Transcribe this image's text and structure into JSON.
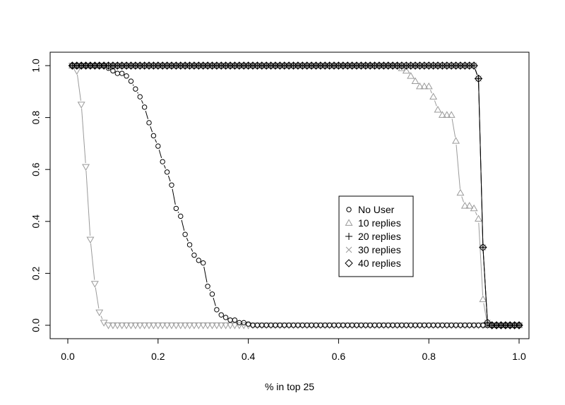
{
  "chart_data": {
    "type": "scatter",
    "title": "",
    "xlabel": "% in top 25",
    "ylabel": "",
    "xlim": [
      0.0,
      1.0
    ],
    "ylim": [
      0.0,
      1.0
    ],
    "xticks": [
      "0.0",
      "0.2",
      "0.4",
      "0.6",
      "0.8",
      "1.0"
    ],
    "yticks": [
      "0.0",
      "0.2",
      "0.4",
      "0.6",
      "0.8",
      "1.0"
    ],
    "grid": false,
    "legend_position": "center-right",
    "legend": [
      {
        "label": "No User",
        "marker": "circle",
        "color": "#000000"
      },
      {
        "label": "10 replies",
        "marker": "triangle-up",
        "color": "#9a9a9a"
      },
      {
        "label": "20 replies",
        "marker": "plus",
        "color": "#000000"
      },
      {
        "label": "30 replies",
        "marker": "cross",
        "color": "#9a9a9a"
      },
      {
        "label": "40 replies",
        "marker": "diamond",
        "color": "#000000"
      }
    ],
    "series": [
      {
        "name": "No User",
        "marker": "circle",
        "color": "#000000",
        "x": [
          0.01,
          0.02,
          0.03,
          0.04,
          0.05,
          0.06,
          0.07,
          0.08,
          0.09,
          0.1,
          0.11,
          0.12,
          0.13,
          0.14,
          0.15,
          0.16,
          0.17,
          0.18,
          0.19,
          0.2,
          0.21,
          0.22,
          0.23,
          0.24,
          0.25,
          0.26,
          0.27,
          0.28,
          0.29,
          0.3,
          0.31,
          0.32,
          0.33,
          0.34,
          0.35,
          0.36,
          0.37,
          0.38,
          0.39,
          0.4,
          0.41,
          0.42,
          0.43,
          0.44,
          0.45,
          0.46,
          0.47,
          0.48,
          0.49,
          0.5,
          0.51,
          0.52,
          0.53,
          0.54,
          0.55,
          0.56,
          0.57,
          0.58,
          0.59,
          0.6,
          0.61,
          0.62,
          0.63,
          0.64,
          0.65,
          0.66,
          0.67,
          0.68,
          0.69,
          0.7,
          0.71,
          0.72,
          0.73,
          0.74,
          0.75,
          0.76,
          0.77,
          0.78,
          0.79,
          0.8,
          0.81,
          0.82,
          0.83,
          0.84,
          0.85,
          0.86,
          0.87,
          0.88,
          0.89,
          0.9,
          0.91,
          0.92,
          0.93,
          0.94,
          0.95,
          0.96,
          0.97,
          0.98,
          0.99,
          1.0
        ],
        "y": [
          1,
          1,
          1,
          1,
          1,
          1,
          1,
          1,
          0.99,
          0.98,
          0.97,
          0.97,
          0.96,
          0.94,
          0.91,
          0.88,
          0.84,
          0.78,
          0.73,
          0.69,
          0.63,
          0.59,
          0.54,
          0.45,
          0.42,
          0.35,
          0.31,
          0.27,
          0.25,
          0.24,
          0.15,
          0.12,
          0.06,
          0.04,
          0.03,
          0.02,
          0.02,
          0.01,
          0.01,
          0.005,
          0,
          0,
          0,
          0,
          0,
          0,
          0,
          0,
          0,
          0,
          0,
          0,
          0,
          0,
          0,
          0,
          0,
          0,
          0,
          0,
          0,
          0,
          0,
          0,
          0,
          0,
          0,
          0,
          0,
          0,
          0,
          0,
          0,
          0,
          0,
          0,
          0,
          0,
          0,
          0,
          0,
          0,
          0,
          0,
          0,
          0,
          0,
          0,
          0,
          0,
          0,
          0,
          0,
          0,
          0,
          0,
          0,
          0,
          0,
          0
        ]
      },
      {
        "name": "10 replies",
        "marker": "triangle-up",
        "color": "#9a9a9a",
        "x": [
          0.01,
          0.02,
          0.03,
          0.04,
          0.05,
          0.06,
          0.07,
          0.08,
          0.09,
          0.1,
          0.11,
          0.12,
          0.13,
          0.14,
          0.15,
          0.16,
          0.17,
          0.18,
          0.19,
          0.2,
          0.21,
          0.22,
          0.23,
          0.24,
          0.25,
          0.26,
          0.27,
          0.28,
          0.29,
          0.3,
          0.31,
          0.32,
          0.33,
          0.34,
          0.35,
          0.36,
          0.37,
          0.38,
          0.39,
          0.4,
          0.41,
          0.42,
          0.43,
          0.44,
          0.45,
          0.46,
          0.47,
          0.48,
          0.49,
          0.5,
          0.51,
          0.52,
          0.53,
          0.54,
          0.55,
          0.56,
          0.57,
          0.58,
          0.59,
          0.6,
          0.61,
          0.62,
          0.63,
          0.64,
          0.65,
          0.66,
          0.67,
          0.68,
          0.69,
          0.7,
          0.71,
          0.72,
          0.73,
          0.74,
          0.75,
          0.76,
          0.77,
          0.78,
          0.79,
          0.8,
          0.81,
          0.82,
          0.83,
          0.84,
          0.85,
          0.86,
          0.87,
          0.88,
          0.89,
          0.9,
          0.91,
          0.92,
          0.93,
          0.94,
          0.95,
          0.96,
          0.97,
          0.98,
          0.99,
          1.0
        ],
        "y": [
          1,
          1,
          1,
          1,
          1,
          1,
          1,
          1,
          1,
          1,
          1,
          1,
          1,
          1,
          1,
          1,
          1,
          1,
          1,
          1,
          1,
          1,
          1,
          1,
          1,
          1,
          1,
          1,
          1,
          1,
          1,
          1,
          1,
          1,
          1,
          1,
          1,
          1,
          1,
          1,
          1,
          1,
          1,
          1,
          1,
          1,
          1,
          1,
          1,
          1,
          1,
          1,
          1,
          1,
          1,
          1,
          1,
          1,
          1,
          1,
          1,
          1,
          1,
          1,
          1,
          1,
          1,
          1,
          1,
          1,
          1,
          1,
          1,
          0.99,
          0.98,
          0.96,
          0.94,
          0.92,
          0.92,
          0.92,
          0.88,
          0.83,
          0.81,
          0.81,
          0.81,
          0.71,
          0.51,
          0.46,
          0.46,
          0.45,
          0.41,
          0.1,
          0,
          0,
          0,
          0,
          0,
          0,
          0,
          0
        ]
      },
      {
        "name": "20 replies",
        "marker": "plus",
        "color": "#000000",
        "x": [
          0.01,
          0.02,
          0.03,
          0.04,
          0.05,
          0.06,
          0.07,
          0.08,
          0.09,
          0.1,
          0.11,
          0.12,
          0.13,
          0.14,
          0.15,
          0.16,
          0.17,
          0.18,
          0.19,
          0.2,
          0.21,
          0.22,
          0.23,
          0.24,
          0.25,
          0.26,
          0.27,
          0.28,
          0.29,
          0.3,
          0.31,
          0.32,
          0.33,
          0.34,
          0.35,
          0.36,
          0.37,
          0.38,
          0.39,
          0.4,
          0.41,
          0.42,
          0.43,
          0.44,
          0.45,
          0.46,
          0.47,
          0.48,
          0.49,
          0.5,
          0.51,
          0.52,
          0.53,
          0.54,
          0.55,
          0.56,
          0.57,
          0.58,
          0.59,
          0.6,
          0.61,
          0.62,
          0.63,
          0.64,
          0.65,
          0.66,
          0.67,
          0.68,
          0.69,
          0.7,
          0.71,
          0.72,
          0.73,
          0.74,
          0.75,
          0.76,
          0.77,
          0.78,
          0.79,
          0.8,
          0.81,
          0.82,
          0.83,
          0.84,
          0.85,
          0.86,
          0.87,
          0.88,
          0.89,
          0.9,
          0.91,
          0.92,
          0.93,
          0.94,
          0.95,
          0.96,
          0.97,
          0.98,
          0.99,
          1.0
        ],
        "y": [
          1,
          1,
          1,
          1,
          1,
          1,
          1,
          1,
          1,
          1,
          1,
          1,
          1,
          1,
          1,
          1,
          1,
          1,
          1,
          1,
          1,
          1,
          1,
          1,
          1,
          1,
          1,
          1,
          1,
          1,
          1,
          1,
          1,
          1,
          1,
          1,
          1,
          1,
          1,
          1,
          1,
          1,
          1,
          1,
          1,
          1,
          1,
          1,
          1,
          1,
          1,
          1,
          1,
          1,
          1,
          1,
          1,
          1,
          1,
          1,
          1,
          1,
          1,
          1,
          1,
          1,
          1,
          1,
          1,
          1,
          1,
          1,
          1,
          1,
          1,
          1,
          1,
          1,
          1,
          1,
          1,
          1,
          1,
          1,
          1,
          1,
          1,
          1,
          1,
          1,
          0.95,
          0.3,
          0.01,
          0,
          0,
          0,
          0,
          0,
          0,
          0
        ]
      },
      {
        "name": "30 replies",
        "marker": "cross",
        "color": "#9a9a9a",
        "x": [
          0.01,
          0.02,
          0.03,
          0.04,
          0.05,
          0.06,
          0.07,
          0.08,
          0.09,
          0.1,
          0.11,
          0.12,
          0.13,
          0.14,
          0.15,
          0.16,
          0.17,
          0.18,
          0.19,
          0.2,
          0.21,
          0.22,
          0.23,
          0.24,
          0.25,
          0.26,
          0.27,
          0.28,
          0.29,
          0.3,
          0.31,
          0.32,
          0.33,
          0.34,
          0.35,
          0.36,
          0.37,
          0.38,
          0.39,
          0.4,
          0.41,
          0.42,
          0.43,
          0.44,
          0.45,
          0.46,
          0.47,
          0.48,
          0.49,
          0.5,
          0.51,
          0.52,
          0.53,
          0.54,
          0.55,
          0.56,
          0.57,
          0.58,
          0.59,
          0.6,
          0.61,
          0.62,
          0.63,
          0.64,
          0.65,
          0.66,
          0.67,
          0.68,
          0.69,
          0.7,
          0.71,
          0.72,
          0.73,
          0.74,
          0.75,
          0.76,
          0.77,
          0.78,
          0.79,
          0.8,
          0.81,
          0.82,
          0.83,
          0.84,
          0.85,
          0.86,
          0.87,
          0.88,
          0.89,
          0.9,
          0.91,
          0.92,
          0.93,
          0.94,
          0.95,
          0.96,
          0.97,
          0.98,
          0.99,
          1.0
        ],
        "y": [
          1,
          1,
          1,
          1,
          1,
          1,
          1,
          1,
          1,
          1,
          1,
          1,
          1,
          1,
          1,
          1,
          1,
          1,
          1,
          1,
          1,
          1,
          1,
          1,
          1,
          1,
          1,
          1,
          1,
          1,
          1,
          1,
          1,
          1,
          1,
          1,
          1,
          1,
          1,
          1,
          1,
          1,
          1,
          1,
          1,
          1,
          1,
          1,
          1,
          1,
          1,
          1,
          1,
          1,
          1,
          1,
          1,
          1,
          1,
          1,
          1,
          1,
          1,
          1,
          1,
          1,
          1,
          1,
          1,
          1,
          1,
          1,
          1,
          1,
          1,
          1,
          1,
          1,
          1,
          1,
          1,
          1,
          1,
          1,
          1,
          1,
          1,
          1,
          1,
          1,
          0.95,
          0.3,
          0.01,
          0,
          0,
          0,
          0,
          0,
          0,
          0
        ]
      },
      {
        "name": "40 replies",
        "marker": "diamond",
        "color": "#000000",
        "x": [
          0.01,
          0.02,
          0.03,
          0.04,
          0.05,
          0.06,
          0.07,
          0.08,
          0.09,
          0.1,
          0.11,
          0.12,
          0.13,
          0.14,
          0.15,
          0.16,
          0.17,
          0.18,
          0.19,
          0.2,
          0.21,
          0.22,
          0.23,
          0.24,
          0.25,
          0.26,
          0.27,
          0.28,
          0.29,
          0.3,
          0.31,
          0.32,
          0.33,
          0.34,
          0.35,
          0.36,
          0.37,
          0.38,
          0.39,
          0.4,
          0.41,
          0.42,
          0.43,
          0.44,
          0.45,
          0.46,
          0.47,
          0.48,
          0.49,
          0.5,
          0.51,
          0.52,
          0.53,
          0.54,
          0.55,
          0.56,
          0.57,
          0.58,
          0.59,
          0.6,
          0.61,
          0.62,
          0.63,
          0.64,
          0.65,
          0.66,
          0.67,
          0.68,
          0.69,
          0.7,
          0.71,
          0.72,
          0.73,
          0.74,
          0.75,
          0.76,
          0.77,
          0.78,
          0.79,
          0.8,
          0.81,
          0.82,
          0.83,
          0.84,
          0.85,
          0.86,
          0.87,
          0.88,
          0.89,
          0.9,
          0.91,
          0.92,
          0.93,
          0.94,
          0.95,
          0.96,
          0.97,
          0.98,
          0.99,
          1.0
        ],
        "y": [
          1,
          1,
          1,
          1,
          1,
          1,
          1,
          1,
          1,
          1,
          1,
          1,
          1,
          1,
          1,
          1,
          1,
          1,
          1,
          1,
          1,
          1,
          1,
          1,
          1,
          1,
          1,
          1,
          1,
          1,
          1,
          1,
          1,
          1,
          1,
          1,
          1,
          1,
          1,
          1,
          1,
          1,
          1,
          1,
          1,
          1,
          1,
          1,
          1,
          1,
          1,
          1,
          1,
          1,
          1,
          1,
          1,
          1,
          1,
          1,
          1,
          1,
          1,
          1,
          1,
          1,
          1,
          1,
          1,
          1,
          1,
          1,
          1,
          1,
          1,
          1,
          1,
          1,
          1,
          1,
          1,
          1,
          1,
          1,
          1,
          1,
          1,
          1,
          1,
          1,
          0.95,
          0.3,
          0.01,
          0,
          0,
          0,
          0,
          0,
          0,
          0
        ]
      },
      {
        "marker": "triangle-down",
        "color": "#9a9a9a",
        "x": [
          0.01,
          0.02,
          0.03,
          0.04,
          0.05,
          0.06,
          0.07,
          0.08,
          0.09,
          0.1,
          0.11,
          0.12,
          0.13,
          0.14,
          0.15,
          0.16,
          0.17,
          0.18,
          0.19,
          0.2,
          0.21,
          0.22,
          0.23,
          0.24,
          0.25,
          0.26,
          0.27,
          0.28,
          0.29,
          0.3,
          0.31,
          0.32,
          0.33,
          0.34,
          0.35,
          0.36,
          0.37,
          0.38,
          0.39,
          0.4,
          0.41,
          0.42,
          0.43,
          0.44,
          0.45,
          0.46,
          0.47,
          0.48,
          0.49,
          0.5,
          0.51,
          0.52,
          0.53,
          0.54,
          0.55,
          0.56,
          0.57,
          0.58,
          0.59,
          0.6,
          0.61,
          0.62,
          0.63,
          0.64,
          0.65,
          0.66,
          0.67,
          0.68,
          0.69,
          0.7,
          0.71,
          0.72,
          0.73,
          0.74,
          0.75,
          0.76,
          0.77,
          0.78,
          0.79,
          0.8,
          0.81,
          0.82,
          0.83,
          0.84,
          0.85,
          0.86,
          0.87,
          0.88,
          0.89,
          0.9,
          0.91,
          0.92,
          0.93,
          0.94,
          0.95,
          0.96,
          0.97,
          0.98,
          0.99,
          1.0
        ],
        "y": [
          1,
          0.98,
          0.85,
          0.61,
          0.33,
          0.16,
          0.05,
          0.01,
          0,
          0,
          0,
          0,
          0,
          0,
          0,
          0,
          0,
          0,
          0,
          0,
          0,
          0,
          0,
          0,
          0,
          0,
          0,
          0,
          0,
          0,
          0,
          0,
          0,
          0,
          0,
          0,
          0,
          0,
          0,
          0,
          0,
          0,
          0,
          0,
          0,
          0,
          0,
          0,
          0,
          0,
          0,
          0,
          0,
          0,
          0,
          0,
          0,
          0,
          0,
          0,
          0,
          0,
          0,
          0,
          0,
          0,
          0,
          0,
          0,
          0,
          0,
          0,
          0,
          0,
          0,
          0,
          0,
          0,
          0,
          0,
          0,
          0,
          0,
          0,
          0,
          0,
          0,
          0,
          0,
          0,
          0,
          0,
          0,
          0,
          0,
          0,
          0,
          0,
          0,
          0
        ]
      }
    ]
  }
}
